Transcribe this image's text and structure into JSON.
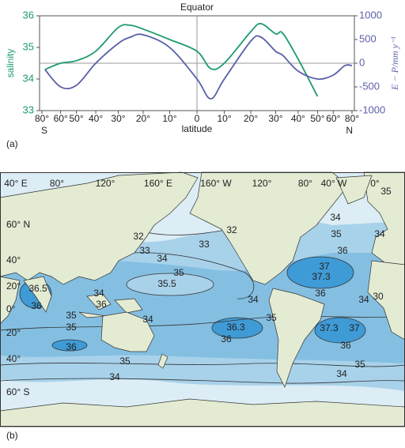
{
  "chart_data": {
    "type": "line",
    "title": "Equator",
    "x_label": "latitude",
    "x_end_labels": [
      "S",
      "N"
    ],
    "y_label": "salinity",
    "y2_label": "E − P/mm y⁻¹",
    "xscale": "sine",
    "xlim": [
      -90,
      90
    ],
    "xticks": [
      {
        "value": -80,
        "label": "80°"
      },
      {
        "value": -60,
        "label": "60°"
      },
      {
        "value": -50,
        "label": "50°"
      },
      {
        "value": -40,
        "label": "40°"
      },
      {
        "value": -30,
        "label": "30°"
      },
      {
        "value": -20,
        "label": "20°"
      },
      {
        "value": -10,
        "label": "10°"
      },
      0,
      {
        "value": 10,
        "label": "10°"
      },
      {
        "value": 20,
        "label": "20°"
      },
      {
        "value": 30,
        "label": "30°"
      },
      {
        "value": 40,
        "label": "40°"
      },
      {
        "value": 50,
        "label": "50°"
      },
      {
        "value": 60,
        "label": "60°"
      },
      {
        "value": 80,
        "label": "80°"
      }
    ],
    "ylim": [
      33,
      36
    ],
    "yticks": [
      33,
      34,
      35,
      36
    ],
    "y2lim": [
      -1000,
      1000
    ],
    "y2ticks": [
      -1000,
      -500,
      0,
      500,
      1000
    ],
    "zero_lines": true,
    "x": [
      -75,
      -60,
      -50,
      -40,
      -30,
      -25,
      -20,
      -10,
      0,
      5,
      10,
      20,
      24,
      30,
      33,
      40,
      50,
      60,
      70,
      80
    ],
    "series": [
      {
        "color": "#1d9b6c",
        "values": [
          34.3,
          34.5,
          34.58,
          34.88,
          35.63,
          35.7,
          35.58,
          35.25,
          34.88,
          34.33,
          34.5,
          35.5,
          35.75,
          35.43,
          35.45,
          34.63,
          33.45,
          null,
          null,
          null
        ]
      },
      {
        "color": "#5a5fa8",
        "axis": "y2",
        "values": [
          -133,
          -500,
          -467,
          0,
          417,
          550,
          600,
          333,
          -333,
          -750,
          -333,
          467,
          550,
          250,
          167,
          -167,
          -333,
          -250,
          -50,
          -50
        ]
      }
    ]
  },
  "figure": {
    "panel_a": "(a)",
    "panel_b": "(b)"
  },
  "map": {
    "longitude_labels": [
      "40° E",
      "80°",
      "120°",
      "160° E",
      "160° W",
      "120°",
      "80°",
      "40° W",
      "0°"
    ],
    "latitude_labels": [
      "60° N",
      "40°",
      "20°",
      "0°",
      "20°",
      "40°",
      "60° S"
    ],
    "contour_labels": [
      "35",
      "34",
      "35",
      "34",
      "36",
      "32",
      "33",
      "32",
      "33",
      "34",
      "35",
      "35.5",
      "37",
      "37.3",
      "36.5",
      "36",
      "34",
      "36",
      "34",
      "34",
      "30",
      "36",
      "35",
      "35",
      "34",
      "35",
      "36.3",
      "36",
      "37.3",
      "37",
      "36",
      "36",
      "35",
      "35",
      "34",
      "34"
    ]
  }
}
